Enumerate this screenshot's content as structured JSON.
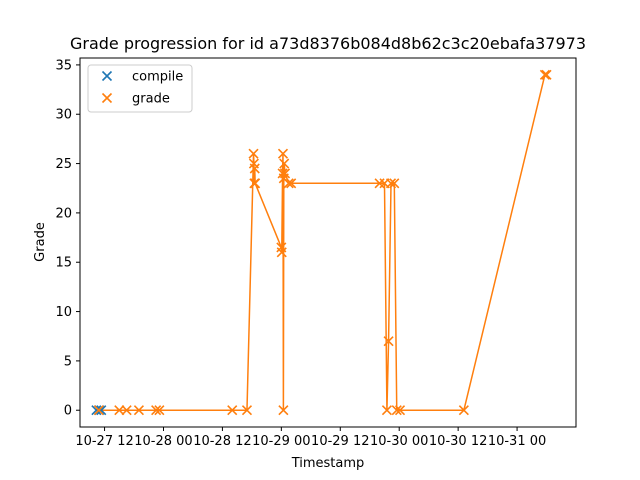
{
  "chart_data": {
    "type": "scatter",
    "title": "Grade progression for id a73d8376b084d8b62c3c20ebafa37973",
    "xlabel": "Timestamp",
    "ylabel": "Grade",
    "x_axis_kind": "datetime",
    "xlim": [
      "2023-10-27T07:00",
      "2023-10-31T12:00"
    ],
    "ylim": [
      -1.7,
      35.7
    ],
    "x_ticks": [
      {
        "value": "2023-10-27T12:00",
        "label": "10-27 12"
      },
      {
        "value": "2023-10-28T00:00",
        "label": "10-28 00"
      },
      {
        "value": "2023-10-28T12:00",
        "label": "10-28 12"
      },
      {
        "value": "2023-10-29T00:00",
        "label": "10-29 00"
      },
      {
        "value": "2023-10-29T12:00",
        "label": "10-29 12"
      },
      {
        "value": "2023-10-30T00:00",
        "label": "10-30 00"
      },
      {
        "value": "2023-10-30T12:00",
        "label": "10-30 12"
      },
      {
        "value": "2023-10-31T00:00",
        "label": "10-31 00"
      }
    ],
    "y_ticks": [
      0,
      5,
      10,
      15,
      20,
      25,
      30,
      35
    ],
    "legend_position": "top-left",
    "grid": false,
    "series": [
      {
        "name": "compile",
        "color": "#1f77b4",
        "marker": "x",
        "line": false,
        "points": [
          {
            "x": "2023-10-27T10:20",
            "y": 0
          },
          {
            "x": "2023-10-27T10:55",
            "y": 0
          },
          {
            "x": "2023-10-27T11:20",
            "y": 0
          }
        ]
      },
      {
        "name": "grade",
        "color": "#ff7f0e",
        "marker": "x",
        "line": true,
        "points": [
          {
            "x": "2023-10-27T10:50",
            "y": 0
          },
          {
            "x": "2023-10-27T15:00",
            "y": 0
          },
          {
            "x": "2023-10-27T16:30",
            "y": 0
          },
          {
            "x": "2023-10-27T19:00",
            "y": 0
          },
          {
            "x": "2023-10-27T22:30",
            "y": 0
          },
          {
            "x": "2023-10-27T23:10",
            "y": 0
          },
          {
            "x": "2023-10-28T14:00",
            "y": 0
          },
          {
            "x": "2023-10-28T17:00",
            "y": 0
          },
          {
            "x": "2023-10-28T18:20",
            "y": 26
          },
          {
            "x": "2023-10-28T18:25",
            "y": 25
          },
          {
            "x": "2023-10-28T18:30",
            "y": 23
          },
          {
            "x": "2023-10-28T18:35",
            "y": 24.5
          },
          {
            "x": "2023-10-28T18:40",
            "y": 23
          },
          {
            "x": "2023-10-29T00:00",
            "y": 16.5
          },
          {
            "x": "2023-10-29T00:05",
            "y": 16
          },
          {
            "x": "2023-10-29T00:15",
            "y": 24
          },
          {
            "x": "2023-10-29T00:20",
            "y": 26
          },
          {
            "x": "2023-10-29T00:25",
            "y": 0
          },
          {
            "x": "2023-10-29T00:30",
            "y": 23.5
          },
          {
            "x": "2023-10-29T00:35",
            "y": 25
          },
          {
            "x": "2023-10-29T00:45",
            "y": 24
          },
          {
            "x": "2023-10-29T01:30",
            "y": 23
          },
          {
            "x": "2023-10-29T02:00",
            "y": 23
          },
          {
            "x": "2023-10-29T20:00",
            "y": 23
          },
          {
            "x": "2023-10-29T21:00",
            "y": 23
          },
          {
            "x": "2023-10-29T21:30",
            "y": 0
          },
          {
            "x": "2023-10-29T21:50",
            "y": 7
          },
          {
            "x": "2023-10-29T22:20",
            "y": 23
          },
          {
            "x": "2023-10-29T23:00",
            "y": 23
          },
          {
            "x": "2023-10-29T23:30",
            "y": 0
          },
          {
            "x": "2023-10-30T00:10",
            "y": 0
          },
          {
            "x": "2023-10-30T13:10",
            "y": 0
          },
          {
            "x": "2023-10-31T05:40",
            "y": 34
          },
          {
            "x": "2023-10-31T06:00",
            "y": 34
          }
        ]
      }
    ]
  }
}
